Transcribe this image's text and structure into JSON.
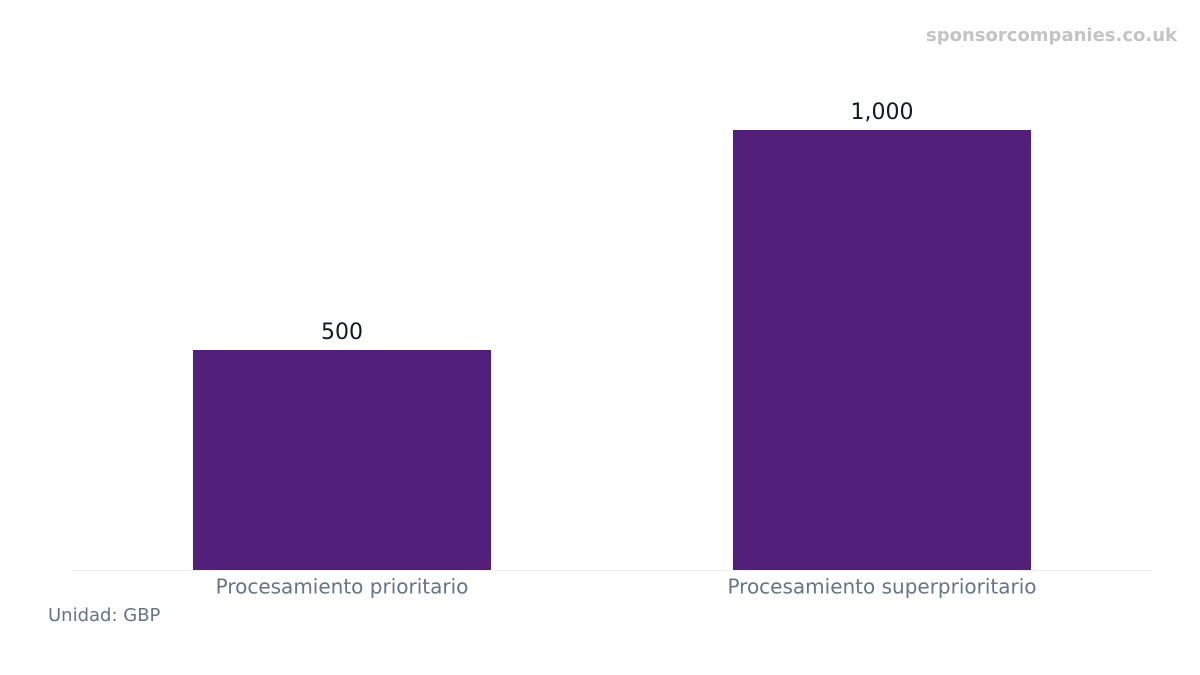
{
  "chart_data": {
    "type": "bar",
    "watermark": "sponsorcompanies.co.uk",
    "unit_note": "Unidad: GBP",
    "categories": [
      "Procesamiento prioritario",
      "Procesamiento superprioritario"
    ],
    "values": [
      500,
      1000
    ],
    "value_labels": [
      "500",
      "1,000"
    ],
    "color": "#52207a",
    "ylim": [
      0,
      1000
    ]
  }
}
